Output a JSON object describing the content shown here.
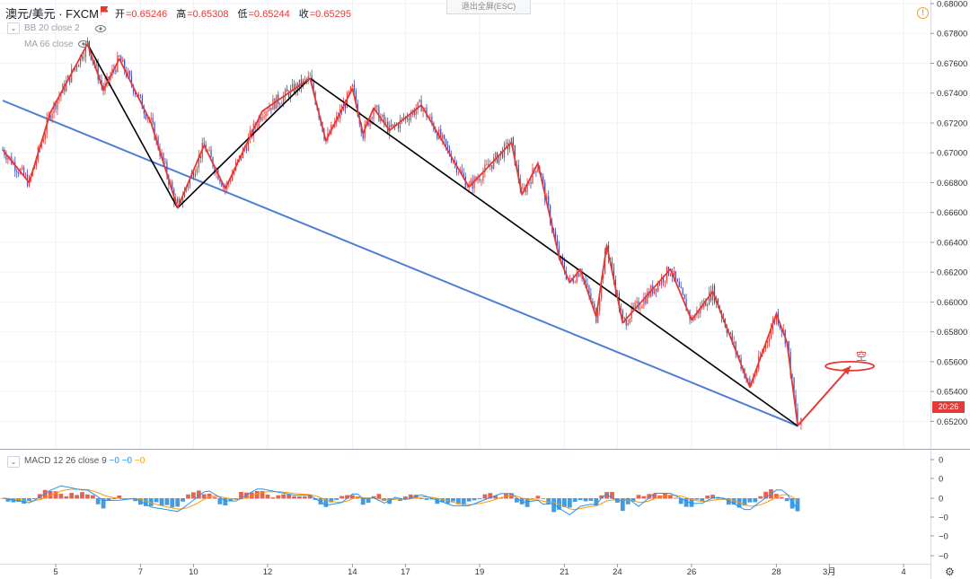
{
  "header": {
    "symbol": "澳元/美元 · FXCM",
    "open_label": "开",
    "open": "=0.65246",
    "high_label": "高",
    "high": "=0.65308",
    "low_label": "低",
    "low": "=0.65244",
    "close_label": "收",
    "close": "=0.65295"
  },
  "indicators": {
    "bb": "BB 20 close 2",
    "ma": "MA 66 close"
  },
  "exit_fullscreen": "退出全屏(ESC)",
  "warning_icon": "!",
  "macd": {
    "label": "MACD 12 26 close 9",
    "v1": "−0",
    "v2": "−0",
    "v3": "−0"
  },
  "price_tag": "20:26",
  "annotation": "空",
  "colors": {
    "up_candle": "#e53935",
    "down_candle": "#3f51b5",
    "zigzag": "#e53935",
    "trend": "#000000",
    "support": "#4a7fd4",
    "macd_line": "#2196f3",
    "signal_line": "#ff9800"
  },
  "chart_data": {
    "type": "candlestick",
    "y_axis": {
      "min": 0.651,
      "max": 0.68,
      "ticks": [
        "0.68000",
        "0.67800",
        "0.67600",
        "0.67400",
        "0.67200",
        "0.67000",
        "0.66800",
        "0.66600",
        "0.66400",
        "0.66200",
        "0.66000",
        "0.65800",
        "0.65600",
        "0.65400",
        "0.65200"
      ]
    },
    "x_axis": {
      "ticks": [
        {
          "label": "5",
          "i": 10
        },
        {
          "label": "7",
          "i": 26
        },
        {
          "label": "10",
          "i": 36
        },
        {
          "label": "12",
          "i": 50
        },
        {
          "label": "14",
          "i": 66
        },
        {
          "label": "17",
          "i": 76
        },
        {
          "label": "19",
          "i": 90
        },
        {
          "label": "21",
          "i": 106
        },
        {
          "label": "24",
          "i": 116
        },
        {
          "label": "26",
          "i": 130
        },
        {
          "label": "28",
          "i": 146
        },
        {
          "label": "3月",
          "i": 156
        },
        {
          "label": "4",
          "i": 170
        }
      ]
    },
    "price_path": [
      {
        "i": 0,
        "v": 0.6702
      },
      {
        "i": 5,
        "v": 0.668
      },
      {
        "i": 9,
        "v": 0.6727
      },
      {
        "i": 16,
        "v": 0.6773
      },
      {
        "i": 19,
        "v": 0.6742
      },
      {
        "i": 22,
        "v": 0.6763
      },
      {
        "i": 28,
        "v": 0.672
      },
      {
        "i": 33,
        "v": 0.6663
      },
      {
        "i": 38,
        "v": 0.6705
      },
      {
        "i": 42,
        "v": 0.6676
      },
      {
        "i": 49,
        "v": 0.6728
      },
      {
        "i": 58,
        "v": 0.675
      },
      {
        "i": 61,
        "v": 0.6708
      },
      {
        "i": 66,
        "v": 0.6743
      },
      {
        "i": 68,
        "v": 0.6713
      },
      {
        "i": 70,
        "v": 0.673
      },
      {
        "i": 73,
        "v": 0.6715
      },
      {
        "i": 79,
        "v": 0.6732
      },
      {
        "i": 88,
        "v": 0.6677
      },
      {
        "i": 96,
        "v": 0.6707
      },
      {
        "i": 98,
        "v": 0.6672
      },
      {
        "i": 101,
        "v": 0.6693
      },
      {
        "i": 105,
        "v": 0.663
      },
      {
        "i": 107,
        "v": 0.6613
      },
      {
        "i": 109,
        "v": 0.6622
      },
      {
        "i": 112,
        "v": 0.659
      },
      {
        "i": 114,
        "v": 0.6638
      },
      {
        "i": 117,
        "v": 0.6586
      },
      {
        "i": 126,
        "v": 0.6622
      },
      {
        "i": 130,
        "v": 0.6588
      },
      {
        "i": 134,
        "v": 0.6607
      },
      {
        "i": 141,
        "v": 0.6543
      },
      {
        "i": 146,
        "v": 0.6592
      },
      {
        "i": 148,
        "v": 0.6573
      },
      {
        "i": 150,
        "v": 0.6518
      }
    ],
    "zigzag": [
      {
        "i": 0,
        "v": 0.6702
      },
      {
        "i": 5,
        "v": 0.668
      },
      {
        "i": 9,
        "v": 0.6727
      },
      {
        "i": 16,
        "v": 0.6773
      },
      {
        "i": 19,
        "v": 0.6742
      },
      {
        "i": 22,
        "v": 0.6763
      },
      {
        "i": 28,
        "v": 0.672
      },
      {
        "i": 33,
        "v": 0.6663
      },
      {
        "i": 38,
        "v": 0.6705
      },
      {
        "i": 42,
        "v": 0.6676
      },
      {
        "i": 49,
        "v": 0.6728
      },
      {
        "i": 58,
        "v": 0.675
      },
      {
        "i": 61,
        "v": 0.6708
      },
      {
        "i": 66,
        "v": 0.6743
      },
      {
        "i": 68,
        "v": 0.6713
      },
      {
        "i": 70,
        "v": 0.673
      },
      {
        "i": 73,
        "v": 0.6715
      },
      {
        "i": 79,
        "v": 0.6732
      },
      {
        "i": 88,
        "v": 0.6677
      },
      {
        "i": 96,
        "v": 0.6707
      },
      {
        "i": 98,
        "v": 0.6672
      },
      {
        "i": 101,
        "v": 0.6693
      },
      {
        "i": 105,
        "v": 0.663
      },
      {
        "i": 107,
        "v": 0.6613
      },
      {
        "i": 109,
        "v": 0.6622
      },
      {
        "i": 112,
        "v": 0.659
      },
      {
        "i": 114,
        "v": 0.6638
      },
      {
        "i": 117,
        "v": 0.6586
      },
      {
        "i": 126,
        "v": 0.6622
      },
      {
        "i": 130,
        "v": 0.6588
      },
      {
        "i": 134,
        "v": 0.6607
      },
      {
        "i": 141,
        "v": 0.6543
      },
      {
        "i": 146,
        "v": 0.6592
      },
      {
        "i": 148,
        "v": 0.6573
      },
      {
        "i": 150,
        "v": 0.6518
      }
    ],
    "trend_black": [
      {
        "i": 16,
        "v": 0.6773
      },
      {
        "i": 33,
        "v": 0.6663
      },
      {
        "i": 58,
        "v": 0.675
      },
      {
        "i": 150,
        "v": 0.6517
      }
    ],
    "support_blue": [
      {
        "i": 0,
        "v": 0.6735
      },
      {
        "i": 150,
        "v": 0.6517
      }
    ],
    "projection": [
      {
        "i": 150,
        "v": 0.6517
      },
      {
        "i": 160,
        "v": 0.6557
      }
    ],
    "target_ellipse": {
      "i": 159,
      "v": 0.6557
    },
    "macd_axis_ticks": [
      "0",
      "0",
      "0",
      "−0",
      "−0",
      "−0"
    ]
  }
}
